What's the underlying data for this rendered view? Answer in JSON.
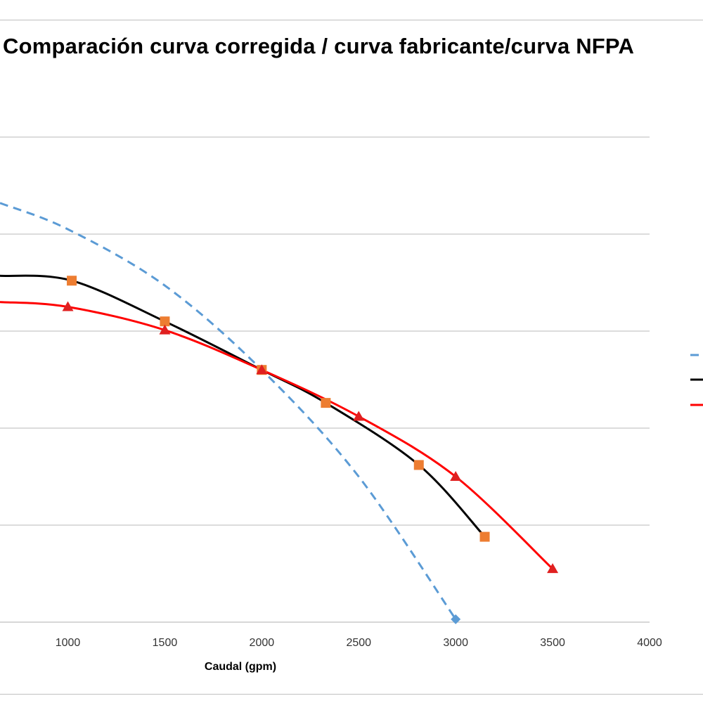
{
  "chart_data": {
    "type": "line",
    "title": "Comparación curva corregida / curva fabricante/curva NFPA",
    "xlabel": "Caudal (gpm)",
    "ylabel": "",
    "xlim": [
      650,
      4000
    ],
    "ylim": [
      0,
      500
    ],
    "x_ticks": [
      1000,
      1500,
      2000,
      2500,
      3000,
      3500,
      4000
    ],
    "y_gridlines": [
      0,
      100,
      200,
      300,
      400,
      500
    ],
    "grid": true,
    "legend_position": "right",
    "series": [
      {
        "color": "#5B9BD5",
        "style": "dashed",
        "marker": "diamond",
        "points": [
          [
            650,
            432
          ],
          [
            1000,
            405
          ],
          [
            1500,
            347
          ],
          [
            2000,
            260
          ],
          [
            2500,
            150
          ],
          [
            3000,
            3
          ]
        ]
      },
      {
        "color": "#000000",
        "style": "solid",
        "marker": "square",
        "marker_color": "#ED7D31",
        "points": [
          [
            650,
            357
          ],
          [
            1020,
            352
          ],
          [
            1500,
            310
          ],
          [
            2000,
            260
          ],
          [
            2330,
            226
          ],
          [
            2810,
            162
          ],
          [
            3150,
            88
          ]
        ]
      },
      {
        "color": "#FF0000",
        "style": "solid",
        "marker": "triangle",
        "marker_color": "#E02020",
        "points": [
          [
            650,
            330
          ],
          [
            1000,
            325
          ],
          [
            1500,
            301
          ],
          [
            2000,
            260
          ],
          [
            2500,
            212
          ],
          [
            3000,
            150
          ],
          [
            3500,
            55
          ]
        ]
      }
    ]
  }
}
